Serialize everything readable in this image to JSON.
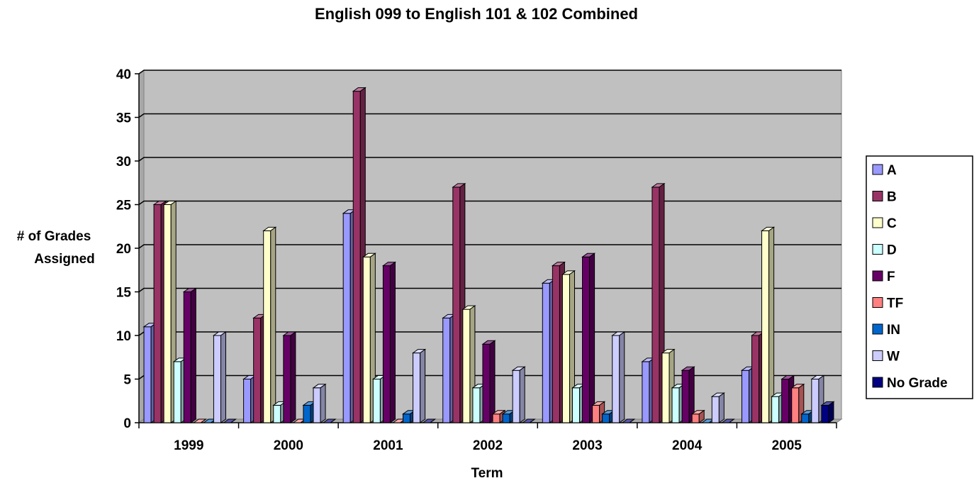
{
  "chart_data": {
    "type": "bar",
    "title": "English 099 to English 101 & 102 Combined",
    "xlabel": "Term",
    "ylabel": [
      "# of Grades",
      "Assigned"
    ],
    "ylim": [
      0,
      40
    ],
    "yticks": [
      0,
      5,
      10,
      15,
      20,
      25,
      30,
      35,
      40
    ],
    "grid": true,
    "legend_position": "right",
    "categories": [
      "1999",
      "2000",
      "2001",
      "2002",
      "2003",
      "2004",
      "2005"
    ],
    "series": [
      {
        "name": "A",
        "color": "#9999ff",
        "values": [
          11,
          5,
          24,
          12,
          16,
          7,
          6
        ]
      },
      {
        "name": "B",
        "color": "#993366",
        "values": [
          25,
          12,
          38,
          27,
          18,
          27,
          10
        ]
      },
      {
        "name": "C",
        "color": "#ffffcc",
        "values": [
          25,
          22,
          19,
          13,
          17,
          8,
          22
        ]
      },
      {
        "name": "D",
        "color": "#ccffff",
        "values": [
          7,
          2,
          5,
          4,
          4,
          4,
          3
        ]
      },
      {
        "name": "F",
        "color": "#660066",
        "values": [
          15,
          10,
          18,
          9,
          19,
          6,
          5
        ]
      },
      {
        "name": "TF",
        "color": "#ff8080",
        "values": [
          0,
          0,
          0,
          1,
          2,
          1,
          4
        ]
      },
      {
        "name": "IN",
        "color": "#0066cc",
        "values": [
          0,
          2,
          1,
          1,
          1,
          0,
          1
        ]
      },
      {
        "name": "W",
        "color": "#ccccff",
        "values": [
          10,
          4,
          8,
          6,
          10,
          3,
          5
        ]
      },
      {
        "name": "No Grade",
        "color": "#000080",
        "values": [
          0,
          0,
          0,
          0,
          0,
          0,
          2
        ]
      }
    ],
    "plot_background": "#c0c0c0"
  }
}
